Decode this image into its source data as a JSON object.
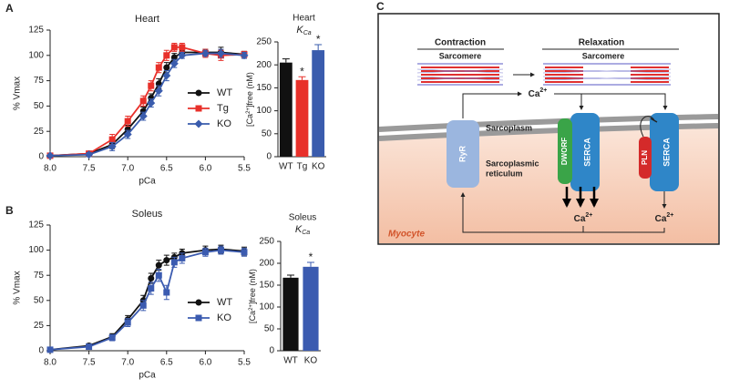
{
  "panels": [
    "A",
    "B"
  ],
  "chart_data": [
    {
      "type": "line",
      "title": "Heart",
      "x_label": "pCa",
      "y_label": "% Vmax",
      "x": [
        8.0,
        7.5,
        7.2,
        7.0,
        6.8,
        6.7,
        6.6,
        6.5,
        6.4,
        6.3,
        6.0,
        5.8,
        5.5
      ],
      "xlim": [
        8,
        5.5
      ],
      "xticks": [
        {
          "value": 8,
          "label": "8.0"
        },
        7.5,
        {
          "value": 7,
          "label": "7.0"
        },
        6.5,
        {
          "value": 6,
          "label": "6.0"
        },
        5.5
      ],
      "ylim": [
        0,
        125
      ],
      "yticks": [
        0,
        25,
        50,
        75,
        100,
        125
      ],
      "legend": "lower right",
      "series": [
        {
          "name": "WT",
          "color": "#111111",
          "marker": "circle",
          "values": [
            1,
            3,
            12,
            27,
            45,
            58,
            72,
            88,
            98,
            103,
            103,
            103,
            101
          ],
          "errors": [
            1,
            2,
            4,
            4,
            4,
            4,
            5,
            5,
            4,
            3,
            3,
            5,
            3
          ]
        },
        {
          "name": "Tg",
          "color": "#e8302a",
          "marker": "square",
          "values": [
            1,
            3,
            17,
            35,
            55,
            70,
            88,
            100,
            108,
            108,
            102,
            100,
            101
          ],
          "errors": [
            1,
            2,
            5,
            5,
            5,
            5,
            5,
            5,
            4,
            4,
            4,
            5,
            3
          ]
        },
        {
          "name": "KO",
          "color": "#3a5cad",
          "marker": "diamond",
          "values": [
            1,
            2,
            10,
            22,
            40,
            53,
            65,
            80,
            92,
            100,
            102,
            102,
            100
          ],
          "errors": [
            1,
            2,
            4,
            4,
            4,
            4,
            5,
            5,
            4,
            3,
            3,
            4,
            3
          ]
        }
      ]
    },
    {
      "type": "bar",
      "title": "Heart",
      "subtitle": {
        "base": "K",
        "sub": "Ca"
      },
      "y_label": {
        "pre": "[Ca",
        "sup": "2+",
        "post": "]free (nM)"
      },
      "categories": [
        "WT",
        "Tg",
        "KO"
      ],
      "values": [
        205,
        167,
        232
      ],
      "errors": [
        8,
        7,
        12
      ],
      "colors": [
        "#111111",
        "#e8302a",
        "#3a5cad"
      ],
      "significance": [
        null,
        "*",
        "*"
      ],
      "ylim": [
        0,
        250
      ],
      "yticks": [
        0,
        50,
        100,
        150,
        200,
        250
      ]
    },
    {
      "type": "line",
      "title": "Soleus",
      "x_label": "pCa",
      "y_label": "% Vmax",
      "x": [
        8.0,
        7.5,
        7.2,
        7.0,
        6.8,
        6.7,
        6.6,
        6.5,
        6.4,
        6.3,
        6.0,
        5.8,
        5.5
      ],
      "xlim": [
        8,
        5.5
      ],
      "xticks": [
        {
          "value": 8,
          "label": "8.0"
        },
        7.5,
        {
          "value": 7,
          "label": "7.0"
        },
        6.5,
        {
          "value": 6,
          "label": "6.0"
        },
        5.5
      ],
      "ylim": [
        0,
        125
      ],
      "yticks": [
        0,
        25,
        50,
        75,
        100,
        125
      ],
      "legend": "lower right",
      "series": [
        {
          "name": "WT",
          "color": "#111111",
          "marker": "circle",
          "values": [
            1,
            5,
            14,
            31,
            50,
            72,
            85,
            90,
            93,
            97,
            100,
            101,
            99
          ],
          "errors": [
            1,
            2,
            3,
            4,
            5,
            5,
            5,
            5,
            4,
            4,
            4,
            4,
            4
          ]
        },
        {
          "name": "KO",
          "color": "#3b5bb0",
          "marker": "square",
          "values": [
            1,
            4,
            13,
            28,
            45,
            62,
            75,
            58,
            88,
            92,
            98,
            100,
            98
          ],
          "errors": [
            1,
            2,
            3,
            4,
            5,
            6,
            6,
            7,
            5,
            5,
            4,
            4,
            4
          ]
        }
      ]
    },
    {
      "type": "bar",
      "title": "Soleus",
      "subtitle": {
        "base": "K",
        "sub": "Ca"
      },
      "y_label": {
        "pre": "[Ca",
        "sup": "2+",
        "post": "]free (nM)"
      },
      "categories": [
        "WT",
        "KO"
      ],
      "values": [
        167,
        192
      ],
      "errors": [
        6,
        10
      ],
      "colors": [
        "#111111",
        "#3b5bb0"
      ],
      "significance": [
        null,
        "*"
      ],
      "ylim": [
        0,
        250
      ],
      "yticks": [
        0,
        50,
        100,
        150,
        200,
        250
      ]
    }
  ],
  "diagram": {
    "label": "C",
    "contraction": "Contraction",
    "relaxation": "Relaxation",
    "sarcomere_1": "Sarcomere",
    "sarcomere_2": "Sarcomere",
    "ca_top": {
      "base": "Ca",
      "sup": "2+"
    },
    "ryr": "RyR",
    "sarcoplasm": "Sarcoplasm",
    "dworf": "DWORF",
    "serca_1": "SERCA",
    "pln": "PLN",
    "serca_2": "SERCA",
    "sr": [
      "Sarcoplasmic",
      "reticulum"
    ],
    "ca_left": {
      "base": "Ca",
      "sup": "2+"
    },
    "ca_right": {
      "base": "Ca",
      "sup": "2+"
    },
    "myocyte": "Myocyte"
  }
}
